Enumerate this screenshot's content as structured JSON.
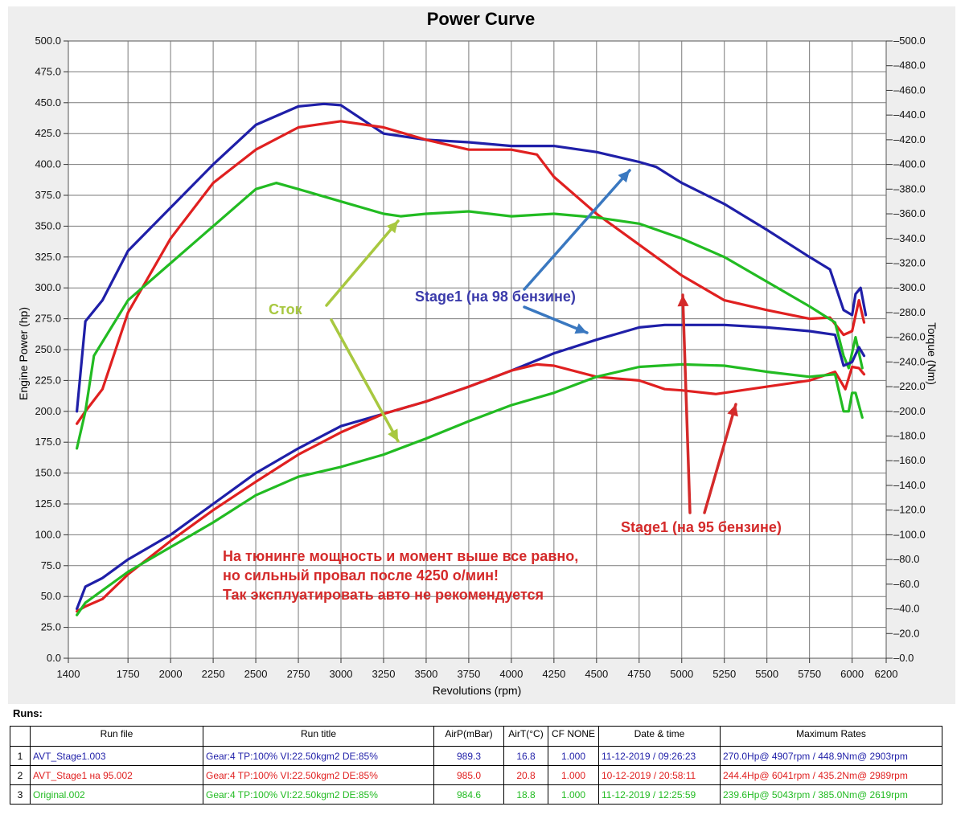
{
  "chart_data": {
    "type": "line",
    "title": "Power Curve",
    "xlabel": "Revolutions (rpm)",
    "ylabel_left": "Engine Power (hp)",
    "ylabel_right": "Torque (Nm)",
    "xlim": [
      1400,
      6200
    ],
    "ylim_left": [
      0,
      500
    ],
    "ylim_right": [
      0,
      500
    ],
    "x_ticks": [
      "1400",
      "1750",
      "2000",
      "2250",
      "2500",
      "2750",
      "3000",
      "3250",
      "3500",
      "3750",
      "4000",
      "4250",
      "4500",
      "4750",
      "5000",
      "5250",
      "5500",
      "5750",
      "6000",
      "6200"
    ],
    "y_left_ticks": [
      "0.0",
      "25.0",
      "50.0",
      "75.0",
      "100.0",
      "125.0",
      "150.0",
      "175.0",
      "200.0",
      "225.0",
      "250.0",
      "275.0",
      "300.0",
      "325.0",
      "350.0",
      "375.0",
      "400.0",
      "425.0",
      "450.0",
      "475.0",
      "500.0"
    ],
    "y_right_ticks": [
      "0.0",
      "20.0",
      "40.0",
      "60.0",
      "80.0",
      "100.0",
      "120.0",
      "140.0",
      "160.0",
      "180.0",
      "200.0",
      "220.0",
      "240.0",
      "260.0",
      "280.0",
      "300.0",
      "320.0",
      "340.0",
      "360.0",
      "380.0",
      "400.0",
      "420.0",
      "440.0",
      "460.0",
      "480.0",
      "500.0"
    ],
    "grid": true,
    "colors": {
      "stage1_98": "#1f1fa8",
      "stage1_95": "#e02020",
      "stock": "#22bb22",
      "stock_label": "#a8c840",
      "stage98_label": "#3a3aaa",
      "stage95_label": "#d42a2a",
      "arrow_blue": "#3a78c0"
    },
    "series": [
      {
        "name": "AVT_Stage1.003 torque",
        "color": "#1f1fa8",
        "axis": "right",
        "x": [
          1450,
          1500,
          1600,
          1750,
          2000,
          2250,
          2500,
          2750,
          2900,
          3000,
          3250,
          3500,
          3750,
          4000,
          4250,
          4500,
          4750,
          4850,
          5000,
          5250,
          5500,
          5750,
          5870,
          5950,
          6000,
          6020,
          6050,
          6080
        ],
        "y": [
          200,
          273,
          290,
          330,
          365,
          400,
          432,
          447,
          449,
          448,
          425,
          420,
          418,
          415,
          415,
          410,
          402,
          398,
          385,
          368,
          347,
          325,
          315,
          282,
          278,
          295,
          300,
          278
        ]
      },
      {
        "name": "AVT_Stage1 на 95.002 torque",
        "color": "#e02020",
        "axis": "right",
        "x": [
          1450,
          1500,
          1600,
          1750,
          2000,
          2250,
          2500,
          2750,
          3000,
          3250,
          3500,
          3750,
          4000,
          4150,
          4250,
          4500,
          4750,
          5000,
          5250,
          5500,
          5750,
          5870,
          5950,
          6000,
          6040,
          6070
        ],
        "y": [
          190,
          200,
          218,
          280,
          340,
          385,
          412,
          430,
          435,
          430,
          420,
          412,
          412,
          408,
          390,
          360,
          335,
          310,
          290,
          282,
          275,
          276,
          262,
          265,
          290,
          272
        ]
      },
      {
        "name": "Original.002 torque",
        "color": "#22bb22",
        "axis": "right",
        "x": [
          1450,
          1500,
          1550,
          1750,
          2000,
          2250,
          2500,
          2620,
          2750,
          3000,
          3250,
          3350,
          3500,
          3750,
          4000,
          4250,
          4500,
          4750,
          5000,
          5250,
          5500,
          5750,
          5900,
          5950,
          5980,
          6020,
          6060
        ],
        "y": [
          170,
          200,
          245,
          290,
          320,
          350,
          380,
          385,
          380,
          370,
          360,
          358,
          360,
          362,
          358,
          360,
          357,
          352,
          340,
          325,
          305,
          285,
          272,
          245,
          235,
          260,
          235
        ]
      },
      {
        "name": "AVT_Stage1.003 power",
        "color": "#1f1fa8",
        "axis": "left",
        "x": [
          1450,
          1500,
          1600,
          1750,
          2000,
          2250,
          2500,
          2750,
          3000,
          3250,
          3500,
          3750,
          4000,
          4250,
          4500,
          4750,
          4900,
          5000,
          5250,
          5500,
          5750,
          5900,
          5950,
          6000,
          6040,
          6070
        ],
        "y": [
          40,
          58,
          65,
          80,
          100,
          125,
          150,
          170,
          188,
          198,
          208,
          220,
          233,
          247,
          258,
          268,
          270,
          270,
          270,
          268,
          265,
          262,
          237,
          240,
          252,
          245
        ]
      },
      {
        "name": "AVT_Stage1 на 95.002 power",
        "color": "#e02020",
        "axis": "left",
        "x": [
          1450,
          1500,
          1600,
          1750,
          2000,
          2250,
          2500,
          2750,
          3000,
          3250,
          3500,
          3750,
          4000,
          4150,
          4250,
          4500,
          4750,
          4900,
          5000,
          5200,
          5500,
          5750,
          5900,
          5960,
          6000,
          6040,
          6070
        ],
        "y": [
          38,
          42,
          48,
          68,
          95,
          120,
          143,
          165,
          183,
          198,
          208,
          220,
          233,
          238,
          237,
          228,
          225,
          218,
          217,
          214,
          220,
          225,
          232,
          218,
          236,
          235,
          230
        ]
      },
      {
        "name": "Original.002 power",
        "color": "#22bb22",
        "axis": "left",
        "x": [
          1450,
          1500,
          1600,
          1750,
          2000,
          2250,
          2500,
          2750,
          3000,
          3250,
          3500,
          3750,
          4000,
          4250,
          4500,
          4750,
          5000,
          5250,
          5500,
          5750,
          5900,
          5950,
          5980,
          6000,
          6020,
          6060
        ],
        "y": [
          35,
          45,
          55,
          70,
          90,
          110,
          132,
          147,
          155,
          165,
          178,
          192,
          205,
          215,
          228,
          236,
          238,
          237,
          232,
          228,
          230,
          200,
          200,
          215,
          215,
          195
        ]
      }
    ],
    "annotations": [
      {
        "text": "Сток",
        "color": "#a8c840"
      },
      {
        "text": "Stage1 (на 98 бензине)",
        "color": "#3a3aaa"
      },
      {
        "text": "Stage1 (на 95 бензине)",
        "color": "#d42a2a"
      },
      {
        "text": "На тюнинге мощность и момент выше все равно,",
        "color": "#d42a2a"
      },
      {
        "text": "но сильный провал после 4250 о/мин!",
        "color": "#d42a2a"
      },
      {
        "text": "Так эксплуатировать авто не рекомендуется",
        "color": "#d42a2a"
      }
    ]
  },
  "runs": {
    "heading": "Runs:",
    "headers": [
      "Run file",
      "Run title",
      "AirP(mBar)",
      "AirT(°C)",
      "CF NONE",
      "Date & time",
      "Maximum Rates"
    ],
    "rows": [
      {
        "idx": "1",
        "color": "#1f1fa8",
        "file": "AVT_Stage1.003",
        "title": "Gear:4 TP:100% VI:22.50kgm2 DE:85%",
        "airp": "989.3",
        "airt": "16.8",
        "cf": "1.000",
        "date": "11-12-2019 / 09:26:23",
        "max": "270.0Hp@ 4907rpm / 448.9Nm@ 2903rpm"
      },
      {
        "idx": "2",
        "color": "#e02020",
        "file": "AVT_Stage1 на 95.002",
        "title": "Gear:4 TP:100% VI:22.50kgm2 DE:85%",
        "airp": "985.0",
        "airt": "20.8",
        "cf": "1.000",
        "date": "10-12-2019 / 20:58:11",
        "max": "244.4Hp@ 6041rpm / 435.2Nm@ 2989rpm"
      },
      {
        "idx": "3",
        "color": "#22bb22",
        "file": "Original.002",
        "title": "Gear:4 TP:100% VI:22.50kgm2 DE:85%",
        "airp": "984.6",
        "airt": "18.8",
        "cf": "1.000",
        "date": "11-12-2019 / 12:25:59",
        "max": "239.6Hp@ 5043rpm / 385.0Nm@ 2619rpm"
      }
    ]
  }
}
